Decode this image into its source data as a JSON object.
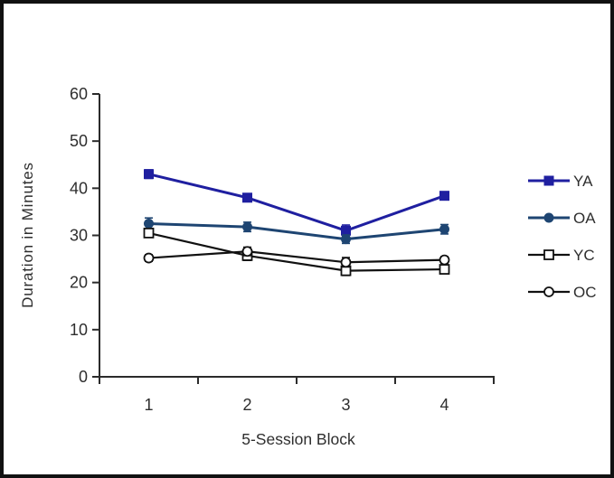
{
  "frame": {
    "background": "#ffffff",
    "border_color": "#111111"
  },
  "chart_data": {
    "type": "line",
    "title": "",
    "xlabel": "5-Session Block",
    "ylabel": "Duration in Minutes",
    "x": [
      1,
      2,
      3,
      4
    ],
    "x_tick_labels": [
      "1",
      "2",
      "3",
      "4"
    ],
    "ylim": [
      0,
      60
    ],
    "yticks": [
      0,
      10,
      20,
      30,
      40,
      50,
      60
    ],
    "grid": false,
    "legend_position": "right",
    "error_bars": true,
    "series": [
      {
        "name": "YA",
        "marker": "filled-square",
        "color": "#1f1fa0",
        "values": [
          43,
          38,
          31,
          38.4
        ],
        "errors": [
          0.9,
          0.8,
          1.2,
          0.8
        ]
      },
      {
        "name": "OA",
        "marker": "filled-circle",
        "color": "#1e4572",
        "values": [
          32.5,
          31.8,
          29.2,
          31.3
        ],
        "errors": [
          1.2,
          1.0,
          0.9,
          1.0
        ]
      },
      {
        "name": "YC",
        "marker": "open-square",
        "color": "#111111",
        "values": [
          30.5,
          25.7,
          22.5,
          22.8
        ],
        "errors": [
          0.8,
          1.0,
          1.0,
          0.8
        ]
      },
      {
        "name": "OC",
        "marker": "open-circle",
        "color": "#111111",
        "values": [
          25.2,
          26.6,
          24.3,
          24.8
        ],
        "errors": [
          0.7,
          0.9,
          1.0,
          0.7
        ]
      }
    ]
  }
}
